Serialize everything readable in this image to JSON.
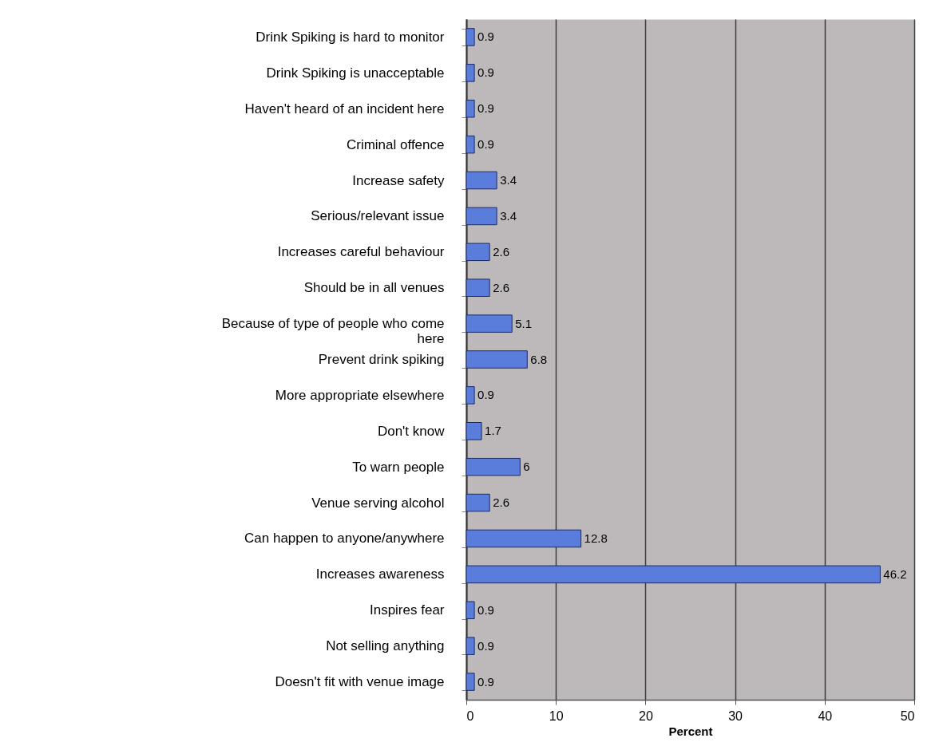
{
  "chart_data": {
    "type": "bar",
    "orientation": "horizontal",
    "xlabel": "Percent",
    "categories": [
      "Drink Spiking is hard to monitor",
      "Drink Spiking is unacceptable",
      "Haven't heard of an incident here",
      "Criminal offence",
      "Increase safety",
      "Serious/relevant issue",
      "Increases careful behaviour",
      "Should be in all venues",
      "Because of type of people who come here",
      "Prevent drink spiking",
      "More appropriate elsewhere",
      "Don't know",
      "To warn people",
      "Venue serving alcohol",
      "Can happen to anyone/anywhere",
      "Increases awareness",
      "Inspires fear",
      "Not selling anything",
      "Doesn't fit with venue image"
    ],
    "values": [
      0.9,
      0.9,
      0.9,
      0.9,
      3.4,
      3.4,
      2.6,
      2.6,
      5.1,
      6.8,
      0.9,
      1.7,
      6,
      2.6,
      12.8,
      46.2,
      0.9,
      0.9,
      0.9
    ],
    "color": "#5a7ddb",
    "xlim": [
      0,
      50
    ],
    "xticks": [
      0,
      10,
      20,
      30,
      40,
      50
    ],
    "grid": "x",
    "data_labels": true
  }
}
